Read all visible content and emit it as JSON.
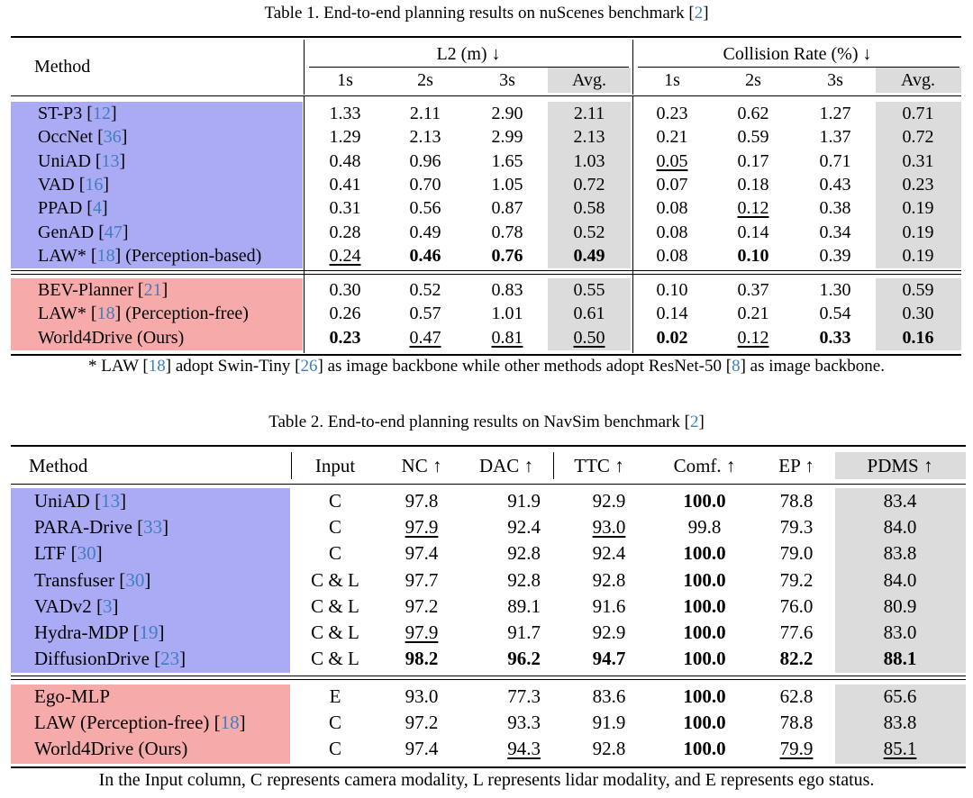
{
  "table1": {
    "caption_prefix": "Table 1. End-to-end planning results on nuScenes benchmark [",
    "caption_ref": "2",
    "caption_suffix": "]",
    "method_header": "Method",
    "l2_header": "L2 (m) ↓",
    "cr_header": "Collision Rate (%) ↓",
    "sub_headers": [
      "1s",
      "2s",
      "3s",
      "Avg.",
      "1s",
      "2s",
      "3s",
      "Avg."
    ],
    "group1": [
      {
        "name": "ST-P3 [",
        "ref": "12",
        "tail": "]",
        "vals": [
          "1.33",
          "2.11",
          "2.90",
          "2.11",
          "0.23",
          "0.62",
          "1.27",
          "0.71"
        ],
        "fmt": [
          "",
          "",
          "",
          "",
          "",
          "",
          "",
          ""
        ]
      },
      {
        "name": "OccNet [",
        "ref": "36",
        "tail": "]",
        "vals": [
          "1.29",
          "2.13",
          "2.99",
          "2.13",
          "0.21",
          "0.59",
          "1.37",
          "0.72"
        ],
        "fmt": [
          "",
          "",
          "",
          "",
          "",
          "",
          "",
          ""
        ]
      },
      {
        "name": "UniAD [",
        "ref": "13",
        "tail": "]",
        "vals": [
          "0.48",
          "0.96",
          "1.65",
          "1.03",
          "0.05",
          "0.17",
          "0.71",
          "0.31"
        ],
        "fmt": [
          "",
          "",
          "",
          "",
          "u",
          "",
          "",
          ""
        ]
      },
      {
        "name": "VAD [",
        "ref": "16",
        "tail": "]",
        "vals": [
          "0.41",
          "0.70",
          "1.05",
          "0.72",
          "0.07",
          "0.18",
          "0.43",
          "0.23"
        ],
        "fmt": [
          "",
          "",
          "",
          "",
          "",
          "",
          "",
          ""
        ]
      },
      {
        "name": "PPAD [",
        "ref": "4",
        "tail": "]",
        "vals": [
          "0.31",
          "0.56",
          "0.87",
          "0.58",
          "0.08",
          "0.12",
          "0.38",
          "0.19"
        ],
        "fmt": [
          "",
          "",
          "",
          "",
          "",
          "u",
          "",
          ""
        ]
      },
      {
        "name": "GenAD [",
        "ref": "47",
        "tail": "]",
        "vals": [
          "0.28",
          "0.49",
          "0.78",
          "0.52",
          "0.08",
          "0.14",
          "0.34",
          "0.19"
        ],
        "fmt": [
          "",
          "",
          "",
          "",
          "",
          "",
          "",
          ""
        ]
      },
      {
        "name": "LAW* [",
        "ref": "18",
        "tail": "] (Perception-based)",
        "vals": [
          "0.24",
          "0.46",
          "0.76",
          "0.49",
          "0.08",
          "0.10",
          "0.39",
          "0.19"
        ],
        "fmt": [
          "u",
          "b",
          "b",
          "b",
          "",
          "b",
          "",
          ""
        ]
      }
    ],
    "group2": [
      {
        "name": "BEV-Planner [",
        "ref": "21",
        "tail": "]",
        "vals": [
          "0.30",
          "0.52",
          "0.83",
          "0.55",
          "0.10",
          "0.37",
          "1.30",
          "0.59"
        ],
        "fmt": [
          "",
          "",
          "",
          "",
          "",
          "",
          "",
          ""
        ]
      },
      {
        "name": "LAW* [",
        "ref": "18",
        "tail": "] (Perception-free)",
        "vals": [
          "0.26",
          "0.57",
          "1.01",
          "0.61",
          "0.14",
          "0.21",
          "0.54",
          "0.30"
        ],
        "fmt": [
          "",
          "",
          "",
          "",
          "",
          "",
          "",
          ""
        ]
      },
      {
        "name": "World4Drive (Ours)",
        "ref": "",
        "tail": "",
        "vals": [
          "0.23",
          "0.47",
          "0.81",
          "0.50",
          "0.02",
          "0.12",
          "0.33",
          "0.16"
        ],
        "fmt": [
          "b",
          "u",
          "u",
          "u",
          "b",
          "u",
          "b",
          "b"
        ]
      }
    ],
    "note_parts": [
      "* LAW [",
      "18",
      "] adopt Swin-Tiny [",
      "26",
      "] as image backbone while other methods adopt ResNet-50 [",
      "8",
      "] as image backbone."
    ]
  },
  "table2": {
    "caption_prefix": "Table 2. End-to-end planning results on NavSim benchmark [",
    "caption_ref": "2",
    "caption_suffix": "]",
    "headers": [
      "Method",
      "Input",
      "NC ↑",
      "DAC ↑",
      "TTC ↑",
      "Comf. ↑",
      "EP ↑",
      "PDMS ↑"
    ],
    "group1": [
      {
        "name": "UniAD [",
        "ref": "13",
        "tail": "]",
        "input": "C",
        "vals": [
          "97.8",
          "91.9",
          "92.9",
          "100.0",
          "78.8",
          "83.4"
        ],
        "fmt": [
          "",
          "",
          "",
          "b",
          "",
          ""
        ]
      },
      {
        "name": "PARA-Drive [",
        "ref": "33",
        "tail": "]",
        "input": "C",
        "vals": [
          "97.9",
          "92.4",
          "93.0",
          "99.8",
          "79.3",
          "84.0"
        ],
        "fmt": [
          "u",
          "",
          "u",
          "",
          "",
          ""
        ]
      },
      {
        "name": "LTF [",
        "ref": "30",
        "tail": "]",
        "input": "C",
        "vals": [
          "97.4",
          "92.8",
          "92.4",
          "100.0",
          "79.0",
          "83.8"
        ],
        "fmt": [
          "",
          "",
          "",
          "b",
          "",
          ""
        ]
      },
      {
        "name": "Transfuser [",
        "ref": "30",
        "tail": "]",
        "input": "C & L",
        "vals": [
          "97.7",
          "92.8",
          "92.8",
          "100.0",
          "79.2",
          "84.0"
        ],
        "fmt": [
          "",
          "",
          "",
          "b",
          "",
          ""
        ]
      },
      {
        "name": "VADv2 [",
        "ref": "3",
        "tail": "]",
        "input": "C & L",
        "vals": [
          "97.2",
          "89.1",
          "91.6",
          "100.0",
          "76.0",
          "80.9"
        ],
        "fmt": [
          "",
          "",
          "",
          "b",
          "",
          ""
        ]
      },
      {
        "name": "Hydra-MDP [",
        "ref": "19",
        "tail": "]",
        "input": "C & L",
        "vals": [
          "97.9",
          "91.7",
          "92.9",
          "100.0",
          "77.6",
          "83.0"
        ],
        "fmt": [
          "u",
          "",
          "",
          "b",
          "",
          ""
        ]
      },
      {
        "name": "DiffusionDrive [",
        "ref": "23",
        "tail": "]",
        "input": "C & L",
        "vals": [
          "98.2",
          "96.2",
          "94.7",
          "100.0",
          "82.2",
          "88.1"
        ],
        "fmt": [
          "b",
          "b",
          "b",
          "b",
          "b",
          "b"
        ]
      }
    ],
    "group2": [
      {
        "name": "Ego-MLP",
        "ref": "",
        "tail": "",
        "input": "E",
        "vals": [
          "93.0",
          "77.3",
          "83.6",
          "100.0",
          "62.8",
          "65.6"
        ],
        "fmt": [
          "",
          "",
          "",
          "b",
          "",
          ""
        ]
      },
      {
        "name": "LAW (Perception-free) [",
        "ref": "18",
        "tail": "]",
        "input": "C",
        "vals": [
          "97.2",
          "93.3",
          "91.9",
          "100.0",
          "78.8",
          "83.8"
        ],
        "fmt": [
          "",
          "",
          "",
          "b",
          "",
          ""
        ]
      },
      {
        "name": "World4Drive (Ours)",
        "ref": "",
        "tail": "",
        "input": "C",
        "vals": [
          "97.4",
          "94.3",
          "92.8",
          "100.0",
          "79.9",
          "85.1"
        ],
        "fmt": [
          "",
          "u",
          "",
          "b",
          "u",
          "u"
        ]
      }
    ],
    "note": "In the Input column, C represents camera modality, L represents lidar modality, and E represents ego status."
  },
  "colors": {
    "blue_group": "#aaaaf5",
    "red_group": "#f6aaaa",
    "avg_col": "#dcdcdc",
    "ref": "#3f7fc0"
  }
}
